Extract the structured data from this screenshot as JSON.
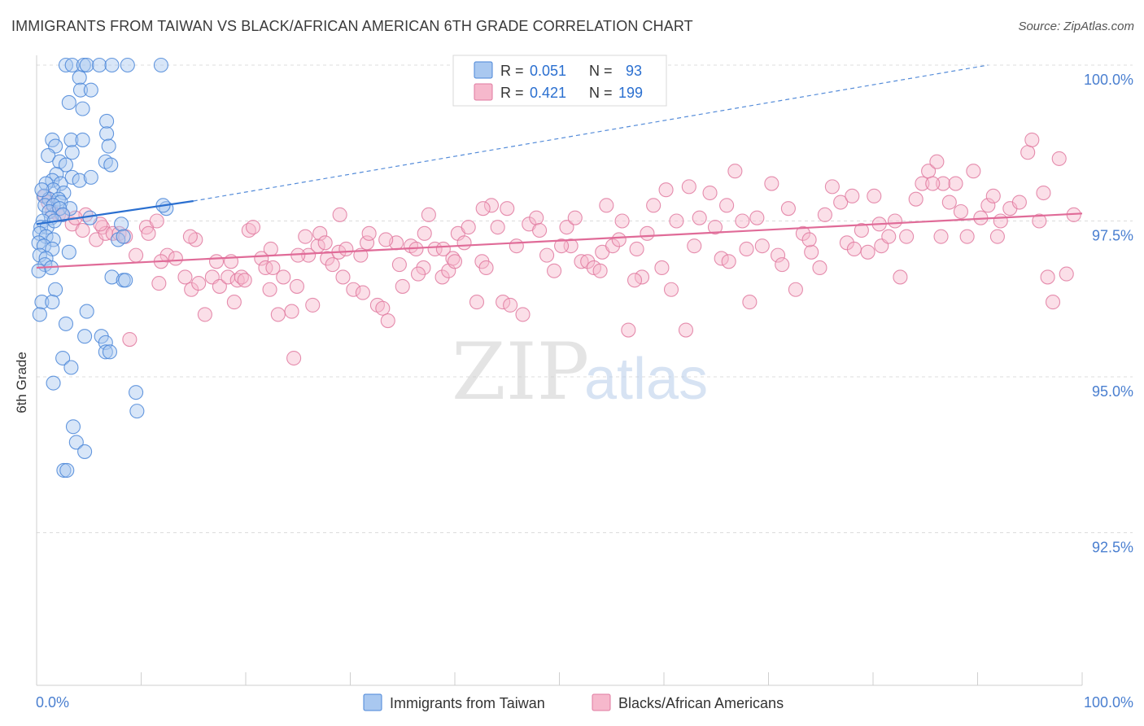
{
  "title": "IMMIGRANTS FROM TAIWAN VS BLACK/AFRICAN AMERICAN 6TH GRADE CORRELATION CHART",
  "source": "Source: ZipAtlas.com",
  "watermark": {
    "part1": "ZIP",
    "part2": "atlas"
  },
  "colors": {
    "blue_fill": "#a9c8f0",
    "blue_stroke": "#4a86d8",
    "blue_line": "#2a6fd0",
    "pink_fill": "#f6b8cc",
    "pink_stroke": "#e07aa0",
    "pink_line": "#e06b98",
    "tick_label": "#4a7fd0",
    "grid": "#dcdcdc"
  },
  "legend_top": {
    "rows": [
      {
        "r_label": "R =",
        "r_value": "0.051",
        "n_label": "N =",
        "n_value": "93",
        "color": "blue"
      },
      {
        "r_label": "R =",
        "r_value": "0.421",
        "n_label": "N =",
        "n_value": "199",
        "color": "pink"
      }
    ]
  },
  "chart_data": {
    "type": "scatter",
    "title": "IMMIGRANTS FROM TAIWAN VS BLACK/AFRICAN AMERICAN 6TH GRADE CORRELATION CHART",
    "xlabel": "",
    "ylabel": "6th Grade",
    "xlim": [
      0,
      100
    ],
    "ylim": [
      90.0,
      100.4
    ],
    "x_tick_labels": [
      "0.0%",
      "100.0%"
    ],
    "y_ticks": [
      100.0,
      97.5,
      95.0,
      92.5
    ],
    "y_tick_labels": [
      "100.0%",
      "97.5%",
      "95.0%",
      "92.5%"
    ],
    "grid": true,
    "legend_placement": "bottom",
    "series": [
      {
        "name": "Immigrants from Taiwan",
        "color": "blue",
        "R": 0.051,
        "N": 93,
        "trend": {
          "x": [
            0,
            15
          ],
          "y": [
            97.45,
            97.82
          ],
          "extended_x": [
            15,
            91
          ],
          "extended_y": [
            97.82,
            100.0
          ]
        },
        "points": [
          [
            2.8,
            100
          ],
          [
            3.4,
            100
          ],
          [
            4.5,
            100
          ],
          [
            4.8,
            100
          ],
          [
            6.0,
            100
          ],
          [
            7.2,
            100
          ],
          [
            8.7,
            100
          ],
          [
            11.9,
            100
          ],
          [
            4.1,
            99.8
          ],
          [
            4.2,
            99.6
          ],
          [
            5.2,
            99.6
          ],
          [
            3.1,
            99.4
          ],
          [
            4.4,
            99.3
          ],
          [
            6.7,
            99.1
          ],
          [
            6.7,
            98.9
          ],
          [
            1.5,
            98.8
          ],
          [
            1.8,
            98.7
          ],
          [
            3.3,
            98.8
          ],
          [
            4.4,
            98.8
          ],
          [
            6.9,
            98.7
          ],
          [
            3.4,
            98.6
          ],
          [
            1.1,
            98.55
          ],
          [
            2.2,
            98.45
          ],
          [
            2.8,
            98.4
          ],
          [
            6.6,
            98.45
          ],
          [
            7.1,
            98.4
          ],
          [
            1.9,
            98.25
          ],
          [
            1.5,
            98.15
          ],
          [
            2.3,
            98.1
          ],
          [
            3.4,
            98.2
          ],
          [
            4.1,
            98.15
          ],
          [
            5.2,
            98.2
          ],
          [
            0.9,
            98.1
          ],
          [
            1.6,
            98.0
          ],
          [
            2.6,
            97.95
          ],
          [
            0.7,
            97.9
          ],
          [
            1.2,
            97.85
          ],
          [
            2.1,
            97.85
          ],
          [
            2.3,
            97.8
          ],
          [
            0.8,
            97.75
          ],
          [
            1.6,
            97.75
          ],
          [
            3.2,
            97.7
          ],
          [
            1.2,
            97.65
          ],
          [
            2.2,
            97.7
          ],
          [
            2.5,
            97.6
          ],
          [
            1.4,
            97.55
          ],
          [
            0.6,
            97.5
          ],
          [
            5.1,
            97.55
          ],
          [
            0.4,
            97.4
          ],
          [
            1.0,
            97.4
          ],
          [
            8.1,
            97.45
          ],
          [
            12.4,
            97.7
          ],
          [
            12.1,
            97.75
          ],
          [
            0.3,
            97.3
          ],
          [
            0.9,
            97.25
          ],
          [
            1.6,
            97.2
          ],
          [
            7.8,
            97.2
          ],
          [
            8.3,
            97.25
          ],
          [
            0.2,
            97.15
          ],
          [
            0.7,
            97.1
          ],
          [
            1.5,
            97.05
          ],
          [
            3.1,
            97.0
          ],
          [
            0.3,
            96.95
          ],
          [
            0.9,
            96.9
          ],
          [
            0.8,
            96.8
          ],
          [
            1.4,
            96.75
          ],
          [
            0.2,
            96.7
          ],
          [
            7.2,
            96.6
          ],
          [
            8.3,
            96.55
          ],
          [
            8.5,
            96.55
          ],
          [
            1.8,
            96.4
          ],
          [
            0.5,
            96.2
          ],
          [
            1.5,
            96.2
          ],
          [
            0.3,
            96.0
          ],
          [
            4.8,
            96.05
          ],
          [
            2.8,
            95.85
          ],
          [
            4.6,
            95.65
          ],
          [
            6.2,
            95.65
          ],
          [
            6.6,
            95.55
          ],
          [
            6.6,
            95.4
          ],
          [
            7.0,
            95.4
          ],
          [
            2.5,
            95.3
          ],
          [
            3.3,
            95.15
          ],
          [
            1.6,
            94.9
          ],
          [
            9.5,
            94.75
          ],
          [
            9.6,
            94.45
          ],
          [
            3.5,
            94.2
          ],
          [
            3.8,
            93.95
          ],
          [
            4.6,
            93.8
          ],
          [
            2.6,
            93.5
          ],
          [
            2.9,
            93.5
          ],
          [
            1.7,
            97.5
          ],
          [
            0.5,
            98.0
          ]
        ]
      },
      {
        "name": "Blacks/African Americans",
        "color": "pink",
        "R": 0.421,
        "N": 199,
        "trend": {
          "x": [
            0,
            100
          ],
          "y": [
            96.75,
            97.62
          ]
        },
        "points": [
          [
            0.8,
            97.9
          ],
          [
            1.5,
            97.65
          ],
          [
            2.1,
            97.6
          ],
          [
            3.4,
            97.45
          ],
          [
            4.4,
            97.35
          ],
          [
            4.7,
            97.6
          ],
          [
            5.7,
            97.2
          ],
          [
            6.3,
            97.4
          ],
          [
            6.6,
            97.3
          ],
          [
            7.3,
            97.3
          ],
          [
            7.9,
            97.3
          ],
          [
            8.5,
            97.25
          ],
          [
            9.5,
            96.95
          ],
          [
            10.5,
            97.4
          ],
          [
            10.7,
            97.3
          ],
          [
            11.5,
            97.5
          ],
          [
            11.7,
            96.5
          ],
          [
            12.5,
            96.95
          ],
          [
            13.3,
            96.9
          ],
          [
            14.2,
            96.6
          ],
          [
            14.8,
            96.4
          ],
          [
            15.2,
            97.2
          ],
          [
            15.5,
            96.5
          ],
          [
            16.1,
            96.0
          ],
          [
            16.8,
            96.6
          ],
          [
            17.2,
            96.85
          ],
          [
            17.5,
            96.45
          ],
          [
            18.3,
            96.6
          ],
          [
            18.9,
            96.2
          ],
          [
            19.2,
            96.55
          ],
          [
            19.6,
            96.6
          ],
          [
            20.3,
            97.35
          ],
          [
            20.7,
            97.4
          ],
          [
            21.5,
            96.9
          ],
          [
            21.9,
            96.75
          ],
          [
            22.3,
            96.4
          ],
          [
            22.6,
            96.75
          ],
          [
            23.6,
            96.6
          ],
          [
            24.4,
            96.05
          ],
          [
            24.6,
            95.3
          ],
          [
            24.9,
            96.45
          ],
          [
            25.7,
            97.25
          ],
          [
            26.0,
            96.95
          ],
          [
            26.4,
            96.15
          ],
          [
            26.9,
            97.1
          ],
          [
            27.1,
            97.3
          ],
          [
            27.8,
            96.9
          ],
          [
            28.3,
            96.8
          ],
          [
            28.9,
            97.0
          ],
          [
            29.3,
            96.6
          ],
          [
            29.6,
            97.05
          ],
          [
            30.3,
            96.4
          ],
          [
            31.2,
            96.35
          ],
          [
            31.6,
            97.15
          ],
          [
            31.8,
            97.3
          ],
          [
            32.6,
            96.15
          ],
          [
            33.1,
            96.1
          ],
          [
            33.6,
            95.9
          ],
          [
            34.4,
            97.15
          ],
          [
            34.7,
            96.8
          ],
          [
            35.0,
            96.45
          ],
          [
            35.8,
            97.1
          ],
          [
            36.3,
            97.05
          ],
          [
            37.0,
            96.75
          ],
          [
            37.5,
            97.6
          ],
          [
            38.1,
            97.05
          ],
          [
            38.8,
            96.6
          ],
          [
            39.4,
            96.7
          ],
          [
            39.8,
            96.9
          ],
          [
            40.3,
            97.3
          ],
          [
            40.9,
            97.15
          ],
          [
            41.3,
            97.4
          ],
          [
            42.1,
            96.2
          ],
          [
            42.6,
            96.85
          ],
          [
            43.0,
            96.75
          ],
          [
            43.5,
            97.75
          ],
          [
            44.1,
            97.4
          ],
          [
            44.6,
            96.2
          ],
          [
            45.0,
            97.7
          ],
          [
            45.9,
            97.1
          ],
          [
            46.5,
            96.0
          ],
          [
            47.1,
            97.45
          ],
          [
            47.8,
            97.55
          ],
          [
            48.8,
            96.95
          ],
          [
            49.5,
            96.7
          ],
          [
            50.7,
            97.4
          ],
          [
            51.1,
            97.1
          ],
          [
            51.5,
            97.55
          ],
          [
            52.1,
            96.85
          ],
          [
            52.7,
            96.85
          ],
          [
            53.3,
            96.75
          ],
          [
            54.1,
            97.0
          ],
          [
            55.1,
            97.1
          ],
          [
            56.0,
            97.5
          ],
          [
            56.6,
            95.75
          ],
          [
            57.4,
            97.05
          ],
          [
            57.9,
            96.6
          ],
          [
            59.0,
            97.75
          ],
          [
            59.8,
            96.75
          ],
          [
            60.7,
            96.4
          ],
          [
            61.2,
            97.5
          ],
          [
            62.1,
            95.75
          ],
          [
            62.9,
            97.1
          ],
          [
            63.4,
            97.55
          ],
          [
            64.4,
            97.95
          ],
          [
            64.9,
            97.4
          ],
          [
            65.5,
            96.9
          ],
          [
            66.2,
            96.85
          ],
          [
            66.8,
            98.3
          ],
          [
            67.5,
            97.5
          ],
          [
            68.2,
            96.2
          ],
          [
            68.9,
            97.55
          ],
          [
            69.4,
            97.1
          ],
          [
            70.3,
            98.1
          ],
          [
            70.9,
            96.95
          ],
          [
            71.3,
            96.8
          ],
          [
            71.9,
            97.7
          ],
          [
            72.6,
            96.4
          ],
          [
            73.3,
            97.3
          ],
          [
            74.1,
            97.0
          ],
          [
            74.9,
            96.75
          ],
          [
            75.4,
            97.6
          ],
          [
            76.1,
            98.05
          ],
          [
            76.9,
            97.8
          ],
          [
            77.5,
            97.15
          ],
          [
            78.2,
            97.05
          ],
          [
            78.9,
            97.35
          ],
          [
            79.5,
            97.0
          ],
          [
            80.1,
            97.9
          ],
          [
            80.8,
            97.1
          ],
          [
            81.5,
            97.25
          ],
          [
            82.1,
            97.5
          ],
          [
            82.6,
            96.6
          ],
          [
            83.2,
            97.25
          ],
          [
            84.1,
            97.85
          ],
          [
            84.7,
            98.1
          ],
          [
            85.3,
            98.3
          ],
          [
            86.1,
            98.45
          ],
          [
            86.7,
            98.1
          ],
          [
            87.3,
            97.8
          ],
          [
            87.9,
            98.1
          ],
          [
            88.4,
            97.65
          ],
          [
            89.0,
            97.25
          ],
          [
            89.6,
            98.3
          ],
          [
            90.3,
            97.55
          ],
          [
            91.0,
            97.75
          ],
          [
            91.5,
            97.9
          ],
          [
            92.2,
            97.5
          ],
          [
            93.1,
            97.7
          ],
          [
            94.0,
            97.8
          ],
          [
            94.8,
            98.6
          ],
          [
            95.2,
            98.8
          ],
          [
            95.9,
            97.5
          ],
          [
            96.7,
            96.6
          ],
          [
            97.2,
            96.2
          ],
          [
            97.8,
            98.5
          ],
          [
            98.5,
            96.65
          ],
          [
            99.2,
            97.6
          ],
          [
            85.7,
            98.1
          ],
          [
            78.0,
            97.9
          ],
          [
            66.0,
            97.75
          ],
          [
            60.2,
            98.0
          ],
          [
            54.5,
            97.75
          ],
          [
            48.1,
            97.35
          ],
          [
            42.7,
            97.7
          ],
          [
            37.1,
            97.3
          ],
          [
            33.4,
            97.2
          ],
          [
            29.0,
            97.6
          ],
          [
            25.0,
            96.95
          ],
          [
            22.4,
            97.05
          ],
          [
            18.6,
            96.85
          ],
          [
            14.7,
            97.25
          ],
          [
            11.9,
            96.85
          ],
          [
            8.9,
            95.6
          ],
          [
            6.1,
            97.45
          ],
          [
            3.7,
            97.55
          ],
          [
            2.4,
            97.6
          ],
          [
            1.1,
            97.8
          ],
          [
            19.9,
            96.55
          ],
          [
            23.1,
            96.0
          ],
          [
            27.6,
            97.15
          ],
          [
            31.0,
            96.95
          ],
          [
            36.5,
            96.65
          ],
          [
            40.0,
            96.85
          ],
          [
            45.3,
            96.15
          ],
          [
            50.2,
            97.1
          ],
          [
            53.9,
            96.7
          ],
          [
            58.4,
            97.3
          ],
          [
            62.4,
            98.05
          ],
          [
            67.9,
            97.05
          ],
          [
            73.9,
            97.2
          ],
          [
            80.6,
            97.45
          ],
          [
            86.5,
            97.25
          ],
          [
            91.9,
            97.25
          ],
          [
            96.3,
            97.95
          ],
          [
            38.9,
            97.05
          ],
          [
            55.7,
            97.2
          ],
          [
            57.2,
            96.55
          ]
        ]
      }
    ]
  },
  "axis": {
    "y_label": "6th Grade",
    "x_min_label": "0.0%",
    "x_max_label": "100.0%"
  },
  "legend_bottom": [
    {
      "label": "Immigrants from Taiwan",
      "color": "blue"
    },
    {
      "label": "Blacks/African Americans",
      "color": "pink"
    }
  ]
}
